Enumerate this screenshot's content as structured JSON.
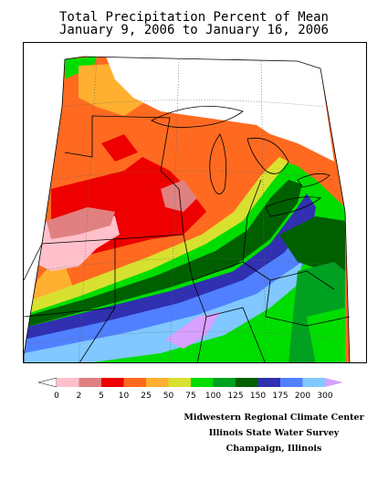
{
  "title": {
    "line1": "Total Precipitation Percent of Mean",
    "line2": "January 9, 2006 to January 16, 2006"
  },
  "legend": {
    "tick_labels": [
      "0",
      "2",
      "5",
      "10",
      "25",
      "50",
      "75",
      "100",
      "125",
      "150",
      "175",
      "200",
      "300"
    ],
    "colors": {
      "below_0": "#ffffff",
      "0_2": "#ffc0cb",
      "2_5": "#e08080",
      "5_10": "#ee0000",
      "10_25": "#ff6a20",
      "25_50": "#ffb030",
      "50_75": "#d8e030",
      "75_100": "#00dd00",
      "100_125": "#00a020",
      "125_150": "#006000",
      "150_175": "#3030b0",
      "175_200": "#5080ff",
      "200_300": "#80c8ff",
      "above_300": "#d8a0ff"
    }
  },
  "credits": {
    "line1": "Midwestern Regional Climate Center",
    "line2": "Illinois State Water Survey",
    "line3": "Champaign, Illinois"
  }
}
